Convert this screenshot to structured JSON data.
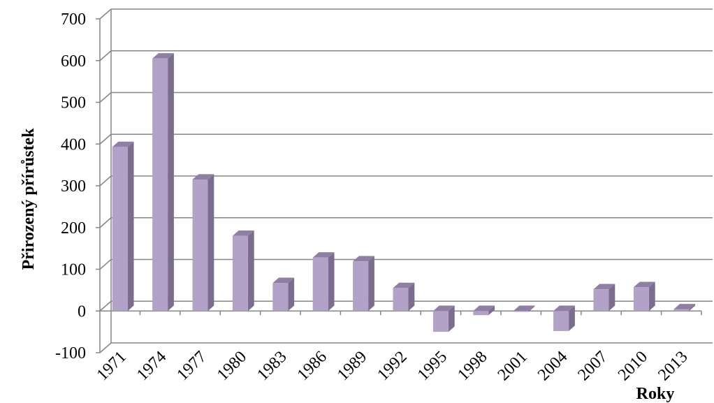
{
  "chart_data": {
    "type": "bar",
    "title": "",
    "xlabel": "Roky",
    "ylabel": "Přirozený přírůstek",
    "categories": [
      "1971",
      "1974",
      "1977",
      "1980",
      "1983",
      "1986",
      "1989",
      "1992",
      "1995",
      "1998",
      "2001",
      "2004",
      "2007",
      "2010",
      "2013"
    ],
    "values": [
      393,
      605,
      315,
      180,
      67,
      128,
      119,
      55,
      -50,
      -10,
      -2,
      -48,
      52,
      57,
      4
    ],
    "ylim": [
      -100,
      700
    ],
    "yticks": [
      "-100",
      "0",
      "100",
      "200",
      "300",
      "400",
      "500",
      "600",
      "700"
    ],
    "grid": true,
    "legend": "none",
    "colors": {
      "bar_front": "#b3a2c7",
      "bar_side": "#7c6d8f",
      "bar_top": "#8e7fa3",
      "grid": "#868686",
      "wall": "#ffffff"
    }
  }
}
